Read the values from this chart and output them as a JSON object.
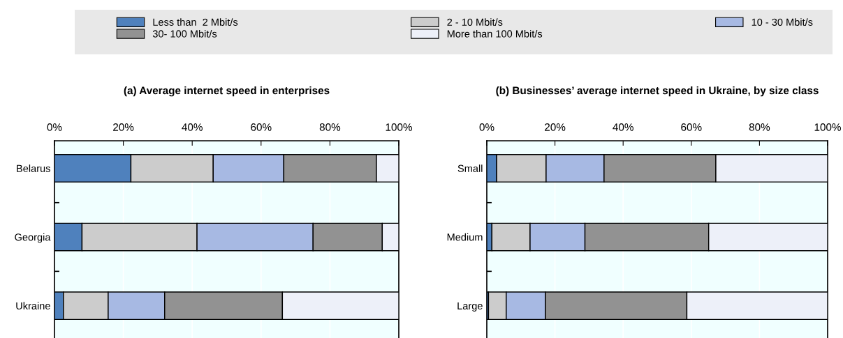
{
  "chart_data": [
    {
      "type": "bar",
      "orientation": "horizontal",
      "stacked": true,
      "title": "(a) Average internet speed in enterprises",
      "categories": [
        "Belarus",
        "Georgia",
        "Ukraine"
      ],
      "series": [
        {
          "name": "Less than  2 Mbit/s",
          "color": "#4f81bd",
          "values": [
            22.2,
            8.0,
            2.6
          ]
        },
        {
          "name": "2 - 10 Mbit/s",
          "color": "#cccccc",
          "values": [
            23.9,
            33.4,
            13.0
          ]
        },
        {
          "name": "10 - 30 Mbit/s",
          "color": "#a7b9e3",
          "values": [
            20.5,
            33.7,
            16.4
          ]
        },
        {
          "name": "30- 100 Mbit/s",
          "color": "#929292",
          "values": [
            26.9,
            20.1,
            34.2
          ]
        },
        {
          "name": "More than 100 Mbit/s",
          "color": "#edf0f9",
          "values": [
            6.5,
            4.8,
            33.8
          ]
        }
      ],
      "xlim": [
        0,
        100
      ],
      "xticks": [
        {
          "value": 0,
          "label": "0%"
        },
        {
          "value": 20,
          "label": "20%"
        },
        {
          "value": 40,
          "label": "40%"
        },
        {
          "value": 60,
          "label": "60%"
        },
        {
          "value": 80,
          "label": "80%"
        },
        {
          "value": 100,
          "label": "100%"
        }
      ],
      "grid": "x",
      "legend": "top"
    },
    {
      "type": "bar",
      "orientation": "horizontal",
      "stacked": true,
      "title": "(b) Businesses’ average internet speed in Ukraine, by size class",
      "categories": [
        "Small",
        "Medium",
        "Large"
      ],
      "series": [
        {
          "name": "Less than  2 Mbit/s",
          "color": "#4f81bd",
          "values": [
            2.9,
            1.5,
            0.5
          ]
        },
        {
          "name": "2 - 10 Mbit/s",
          "color": "#cccccc",
          "values": [
            14.5,
            11.2,
            5.2
          ]
        },
        {
          "name": "10 - 30 Mbit/s",
          "color": "#a7b9e3",
          "values": [
            17.0,
            16.1,
            11.5
          ]
        },
        {
          "name": "30- 100 Mbit/s",
          "color": "#929292",
          "values": [
            32.8,
            36.3,
            41.5
          ]
        },
        {
          "name": "More than 100 Mbit/s",
          "color": "#edf0f9",
          "values": [
            32.8,
            34.9,
            41.3
          ]
        }
      ],
      "xlim": [
        0,
        100
      ],
      "xticks": [
        {
          "value": 0,
          "label": "0%"
        },
        {
          "value": 20,
          "label": "20%"
        },
        {
          "value": 40,
          "label": "40%"
        },
        {
          "value": 60,
          "label": "60%"
        },
        {
          "value": 80,
          "label": "80%"
        },
        {
          "value": 100,
          "label": "100%"
        }
      ],
      "grid": "x",
      "legend": "top"
    }
  ]
}
